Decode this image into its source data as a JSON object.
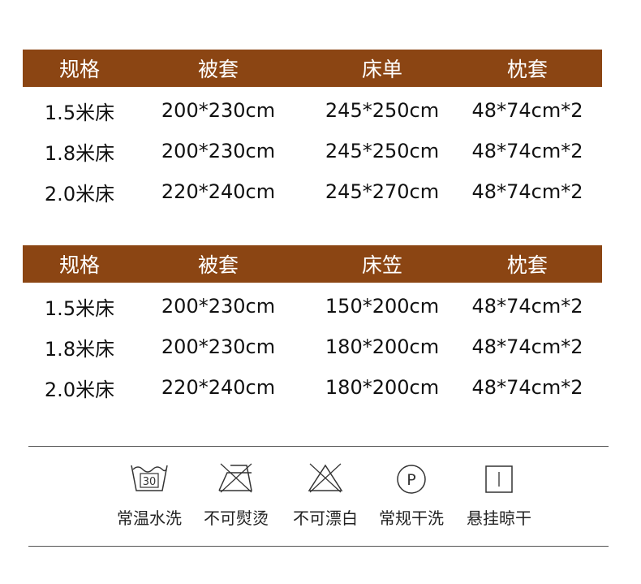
{
  "colors": {
    "header_bg": "#8B4513",
    "header_text": "#ffffff"
  },
  "table1": {
    "headers": [
      "规格",
      "被套",
      "床单",
      "枕套"
    ],
    "rows": [
      [
        "1.5米床",
        "200*230cm",
        "245*250cm",
        "48*74cm*2"
      ],
      [
        "1.8米床",
        "200*230cm",
        "245*250cm",
        "48*74cm*2"
      ],
      [
        "2.0米床",
        "220*240cm",
        "245*270cm",
        "48*74cm*2"
      ]
    ]
  },
  "table2": {
    "headers": [
      "规格",
      "被套",
      "床笠",
      "枕套"
    ],
    "rows": [
      [
        "1.5米床",
        "200*230cm",
        "150*200cm",
        "48*74cm*2"
      ],
      [
        "1.8米床",
        "200*230cm",
        "180*200cm",
        "48*74cm*2"
      ],
      [
        "2.0米床",
        "220*240cm",
        "180*200cm",
        "48*74cm*2"
      ]
    ]
  },
  "care": [
    {
      "icon": "wash-30-icon",
      "label": "常温水洗",
      "temp": "30"
    },
    {
      "icon": "no-iron-icon",
      "label": "不可熨烫"
    },
    {
      "icon": "no-bleach-icon",
      "label": "不可漂白"
    },
    {
      "icon": "dry-clean-p-icon",
      "label": "常规干洗",
      "letter": "P"
    },
    {
      "icon": "line-dry-icon",
      "label": "悬挂晾干"
    }
  ]
}
